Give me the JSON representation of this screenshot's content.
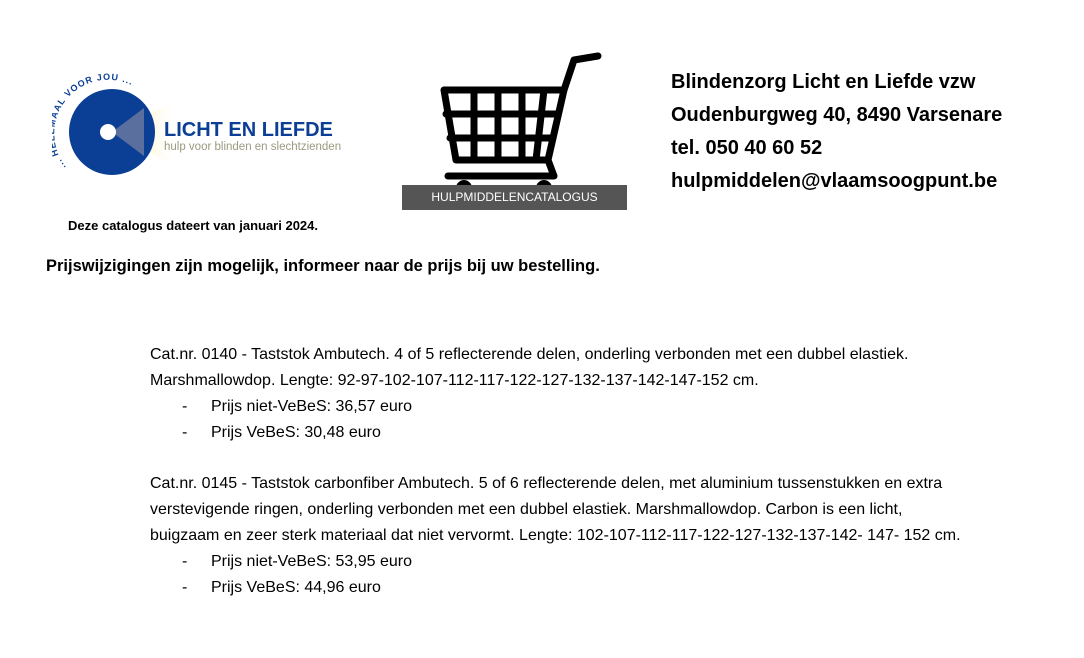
{
  "logo": {
    "arc_text": "... HELEMAAL VOOR JOU ...",
    "name": "LICHT EN LIEFDE",
    "tagline": "hulp voor blinden en slechtzienden",
    "colors": {
      "blue": "#0a3f95",
      "yellow": "#f7d64a",
      "tagline": "#9a9a80"
    }
  },
  "cart": {
    "icon": "shopping-cart-icon",
    "label": "HULPMIDDELENCATALOGUS"
  },
  "contact": {
    "org": "Blindenzorg Licht en Liefde vzw",
    "address": "Oudenburgweg 40, 8490 Varsenare",
    "phone": "tel. 050 40 60 52",
    "email": "hulpmiddelen@vlaamsoogpunt.be"
  },
  "date_note": "Deze catalogus dateert van januari 2024.",
  "price_notice": "Prijswijzigingen zijn mogelijk, informeer naar de prijs bij uw bestelling.",
  "items": [
    {
      "description": "Cat.nr. 0140 - Taststok Ambutech. 4 of 5 reflecterende delen, onderling verbonden met een dubbel elastiek. Marshmallowdop. Lengte: 92-97-102-107-112-117-122-127-132-137-142-147-152 cm.",
      "prices": [
        "Prijs niet-VeBeS: 36,57 euro",
        "Prijs VeBeS: 30,48 euro"
      ]
    },
    {
      "description": "Cat.nr. 0145 - Taststok carbonfiber Ambutech. 5 of 6 reflecterende delen, met aluminium tussenstukken en extra verstevigende ringen, onderling verbonden met een dubbel elastiek. Marshmallowdop. Carbon is een licht, buigzaam en zeer sterk materiaal dat niet vervormt. Lengte: 102-107-112-117-122-127-132-137-142- 147- 152 cm.",
      "prices": [
        "Prijs niet-VeBeS: 53,95 euro",
        "Prijs VeBeS: 44,96 euro"
      ]
    }
  ],
  "bullet": "-"
}
